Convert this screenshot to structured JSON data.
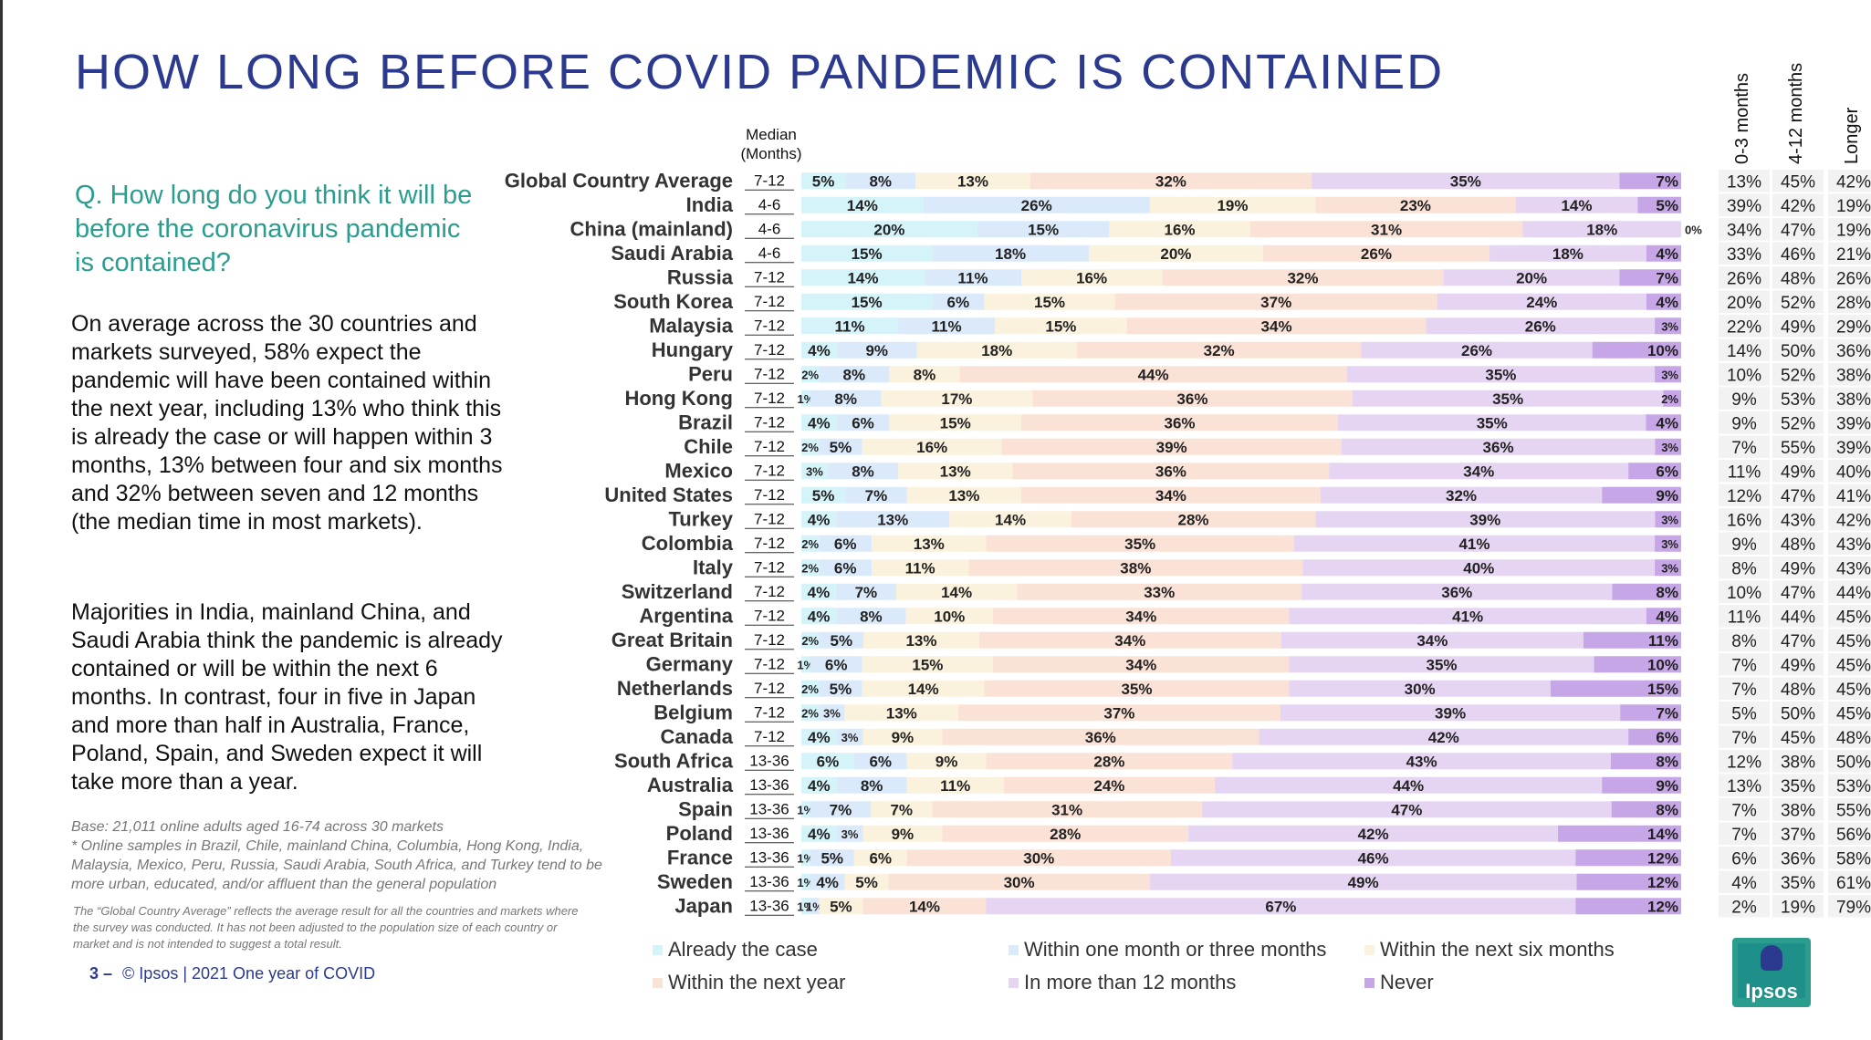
{
  "page": {
    "title": "HOW LONG BEFORE COVID PANDEMIC IS CONTAINED",
    "question": "Q. How long do you think it will be before the coronavirus pandemic is contained?",
    "paragraph1": "On average across the 30 countries and markets surveyed, 58% expect the pandemic will have been contained within the next year, including 13% who think this is already the case or will happen within 3 months, 13% between four and six months and 32% between seven and 12 months (the median time in most markets).",
    "paragraph2": "Majorities in India, mainland China, and Saudi Arabia think the pandemic is already contained or will be within the next 6 months. In contrast, four in five in Japan and more than half in Australia, France, Poland, Spain, and Sweden expect it will take more than a year.",
    "base_note": "Base: 21,011 online adults aged 16-74 across 30 markets\n* Online samples in Brazil, Chile, mainland China, Columbia, Hong Kong, India, Malaysia, Mexico, Peru, Russia, Saudi Arabia, South Africa, and Turkey tend to be more urban, educated, and/or affluent than the general population",
    "gca_note": "The “Global Country Average” reflects the average result for all the countries and markets where the survey was conducted. It has not been adjusted to the population size of each country or market and is not intended to suggest a total result.",
    "footer_num": "3 –",
    "footer_text": "© Ipsos | 2021 One year of COVID",
    "median_header": "Median\n(Months)",
    "logo_text": "Ipsos"
  },
  "chart_data": {
    "type": "bar",
    "orientation": "horizontal-stacked-100",
    "series": [
      {
        "name": "Already the case",
        "color": "#d4f4fa"
      },
      {
        "name": "Within one month or three months",
        "color": "#dbeafb"
      },
      {
        "name": "Within the next six months",
        "color": "#fbf2dd"
      },
      {
        "name": "Within the next year",
        "color": "#fbe2d6"
      },
      {
        "name": "In more than 12 months",
        "color": "#e6d5f2"
      },
      {
        "name": "Never",
        "color": "#c6a6e6"
      }
    ],
    "summary_columns": [
      "0-3 months",
      "4-12 months",
      "Longer"
    ],
    "rows": [
      {
        "label": "Global Country Average",
        "median": "7-12",
        "values": [
          5,
          8,
          13,
          32,
          35,
          7
        ],
        "summary": [
          "13%",
          "45%",
          "42%"
        ]
      },
      {
        "label": "India",
        "median": "4-6",
        "values": [
          14,
          26,
          19,
          23,
          14,
          5
        ],
        "summary": [
          "39%",
          "42%",
          "19%"
        ]
      },
      {
        "label": "China (mainland)",
        "median": "4-6",
        "values": [
          20,
          15,
          16,
          31,
          18,
          0
        ],
        "summary": [
          "34%",
          "47%",
          "19%"
        ]
      },
      {
        "label": "Saudi Arabia",
        "median": "4-6",
        "values": [
          15,
          18,
          20,
          26,
          18,
          4
        ],
        "summary": [
          "33%",
          "46%",
          "21%"
        ]
      },
      {
        "label": "Russia",
        "median": "7-12",
        "values": [
          14,
          11,
          16,
          32,
          20,
          7
        ],
        "summary": [
          "26%",
          "48%",
          "26%"
        ]
      },
      {
        "label": "South Korea",
        "median": "7-12",
        "values": [
          15,
          6,
          15,
          37,
          24,
          4
        ],
        "summary": [
          "20%",
          "52%",
          "28%"
        ]
      },
      {
        "label": "Malaysia",
        "median": "7-12",
        "values": [
          11,
          11,
          15,
          34,
          26,
          3
        ],
        "summary": [
          "22%",
          "49%",
          "29%"
        ]
      },
      {
        "label": "Hungary",
        "median": "7-12",
        "values": [
          4,
          9,
          18,
          32,
          26,
          10
        ],
        "summary": [
          "14%",
          "50%",
          "36%"
        ]
      },
      {
        "label": "Peru",
        "median": "7-12",
        "values": [
          2,
          8,
          8,
          44,
          35,
          3
        ],
        "summary": [
          "10%",
          "52%",
          "38%"
        ]
      },
      {
        "label": "Hong Kong",
        "median": "7-12",
        "values": [
          1,
          8,
          17,
          36,
          35,
          2
        ],
        "summary": [
          "9%",
          "53%",
          "38%"
        ]
      },
      {
        "label": "Brazil",
        "median": "7-12",
        "values": [
          4,
          6,
          15,
          36,
          35,
          4
        ],
        "summary": [
          "9%",
          "52%",
          "39%"
        ]
      },
      {
        "label": "Chile",
        "median": "7-12",
        "values": [
          2,
          5,
          16,
          39,
          36,
          3
        ],
        "summary": [
          "7%",
          "55%",
          "39%"
        ]
      },
      {
        "label": "Mexico",
        "median": "7-12",
        "values": [
          3,
          8,
          13,
          36,
          34,
          6
        ],
        "summary": [
          "11%",
          "49%",
          "40%"
        ]
      },
      {
        "label": "United States",
        "median": "7-12",
        "values": [
          5,
          7,
          13,
          34,
          32,
          9
        ],
        "summary": [
          "12%",
          "47%",
          "41%"
        ]
      },
      {
        "label": "Turkey",
        "median": "7-12",
        "values": [
          4,
          13,
          14,
          28,
          39,
          3
        ],
        "summary": [
          "16%",
          "43%",
          "42%"
        ]
      },
      {
        "label": "Colombia",
        "median": "7-12",
        "values": [
          2,
          6,
          13,
          35,
          41,
          3
        ],
        "summary": [
          "9%",
          "48%",
          "43%"
        ]
      },
      {
        "label": "Italy",
        "median": "7-12",
        "values": [
          2,
          6,
          11,
          38,
          40,
          3
        ],
        "summary": [
          "8%",
          "49%",
          "43%"
        ]
      },
      {
        "label": "Switzerland",
        "median": "7-12",
        "values": [
          4,
          7,
          14,
          33,
          36,
          8
        ],
        "summary": [
          "10%",
          "47%",
          "44%"
        ]
      },
      {
        "label": "Argentina",
        "median": "7-12",
        "values": [
          4,
          8,
          10,
          34,
          41,
          4
        ],
        "summary": [
          "11%",
          "44%",
          "45%"
        ]
      },
      {
        "label": "Great Britain",
        "median": "7-12",
        "values": [
          2,
          5,
          13,
          34,
          34,
          11
        ],
        "summary": [
          "8%",
          "47%",
          "45%"
        ]
      },
      {
        "label": "Germany",
        "median": "7-12",
        "values": [
          1,
          6,
          15,
          34,
          35,
          10
        ],
        "summary": [
          "7%",
          "49%",
          "45%"
        ]
      },
      {
        "label": "Netherlands",
        "median": "7-12",
        "values": [
          2,
          5,
          14,
          35,
          30,
          15
        ],
        "summary": [
          "7%",
          "48%",
          "45%"
        ]
      },
      {
        "label": "Belgium",
        "median": "7-12",
        "values": [
          2,
          3,
          13,
          37,
          39,
          7
        ],
        "summary": [
          "5%",
          "50%",
          "45%"
        ]
      },
      {
        "label": "Canada",
        "median": "7-12",
        "values": [
          4,
          3,
          9,
          36,
          42,
          6
        ],
        "summary": [
          "7%",
          "45%",
          "48%"
        ]
      },
      {
        "label": "South Africa",
        "median": "13-36",
        "values": [
          6,
          6,
          9,
          28,
          43,
          8
        ],
        "summary": [
          "12%",
          "38%",
          "50%"
        ]
      },
      {
        "label": "Australia",
        "median": "13-36",
        "values": [
          4,
          8,
          11,
          24,
          44,
          9
        ],
        "summary": [
          "13%",
          "35%",
          "53%"
        ]
      },
      {
        "label": "Spain",
        "median": "13-36",
        "values": [
          1,
          7,
          7,
          31,
          47,
          8
        ],
        "summary": [
          "7%",
          "38%",
          "55%"
        ]
      },
      {
        "label": "Poland",
        "median": "13-36",
        "values": [
          4,
          3,
          9,
          28,
          42,
          14
        ],
        "summary": [
          "7%",
          "37%",
          "56%"
        ]
      },
      {
        "label": "France",
        "median": "13-36",
        "values": [
          1,
          5,
          6,
          30,
          46,
          12
        ],
        "summary": [
          "6%",
          "36%",
          "58%"
        ]
      },
      {
        "label": "Sweden",
        "median": "13-36",
        "values": [
          1,
          4,
          5,
          30,
          49,
          12
        ],
        "summary": [
          "4%",
          "35%",
          "61%"
        ]
      },
      {
        "label": "Japan",
        "median": "13-36",
        "values": [
          1,
          1,
          5,
          14,
          67,
          12
        ],
        "summary": [
          "2%",
          "19%",
          "79%"
        ]
      }
    ],
    "legend_placement": "bottom",
    "grid": false
  }
}
